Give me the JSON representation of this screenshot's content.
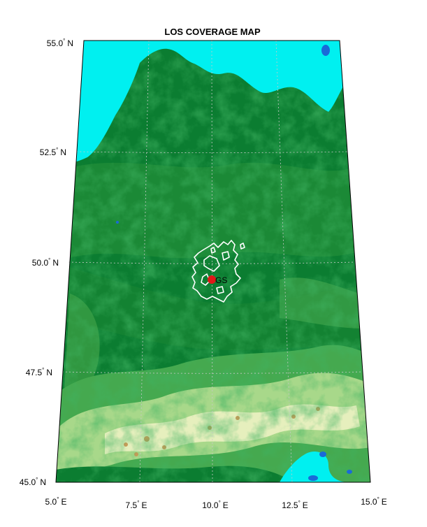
{
  "title": "LOS COVERAGE MAP",
  "lat_labels": [
    {
      "deg": "55.0",
      "hemi": "N"
    },
    {
      "deg": "52.5",
      "hemi": "N"
    },
    {
      "deg": "50.0",
      "hemi": "N"
    },
    {
      "deg": "47.5",
      "hemi": "N"
    },
    {
      "deg": "45.0",
      "hemi": "N"
    }
  ],
  "lon_labels": [
    {
      "deg": "5.0",
      "hemi": "E"
    },
    {
      "deg": "7.5",
      "hemi": "E"
    },
    {
      "deg": "10.0",
      "hemi": "E"
    },
    {
      "deg": "12.5",
      "hemi": "E"
    },
    {
      "deg": "15.0",
      "hemi": "E"
    }
  ],
  "ground_station": {
    "label": "GS",
    "marker_color": "#e01818"
  },
  "colors": {
    "sea": "#00f0f0",
    "lowland": "#0a7a2f",
    "mid": "#2f9a3c",
    "highland": "#9ed07a",
    "alps": "#e8f0c0",
    "peak": "#c8a060",
    "lake": "#1a6ad8",
    "coverage": "#ffffff",
    "grid": "#c8c8c8"
  }
}
